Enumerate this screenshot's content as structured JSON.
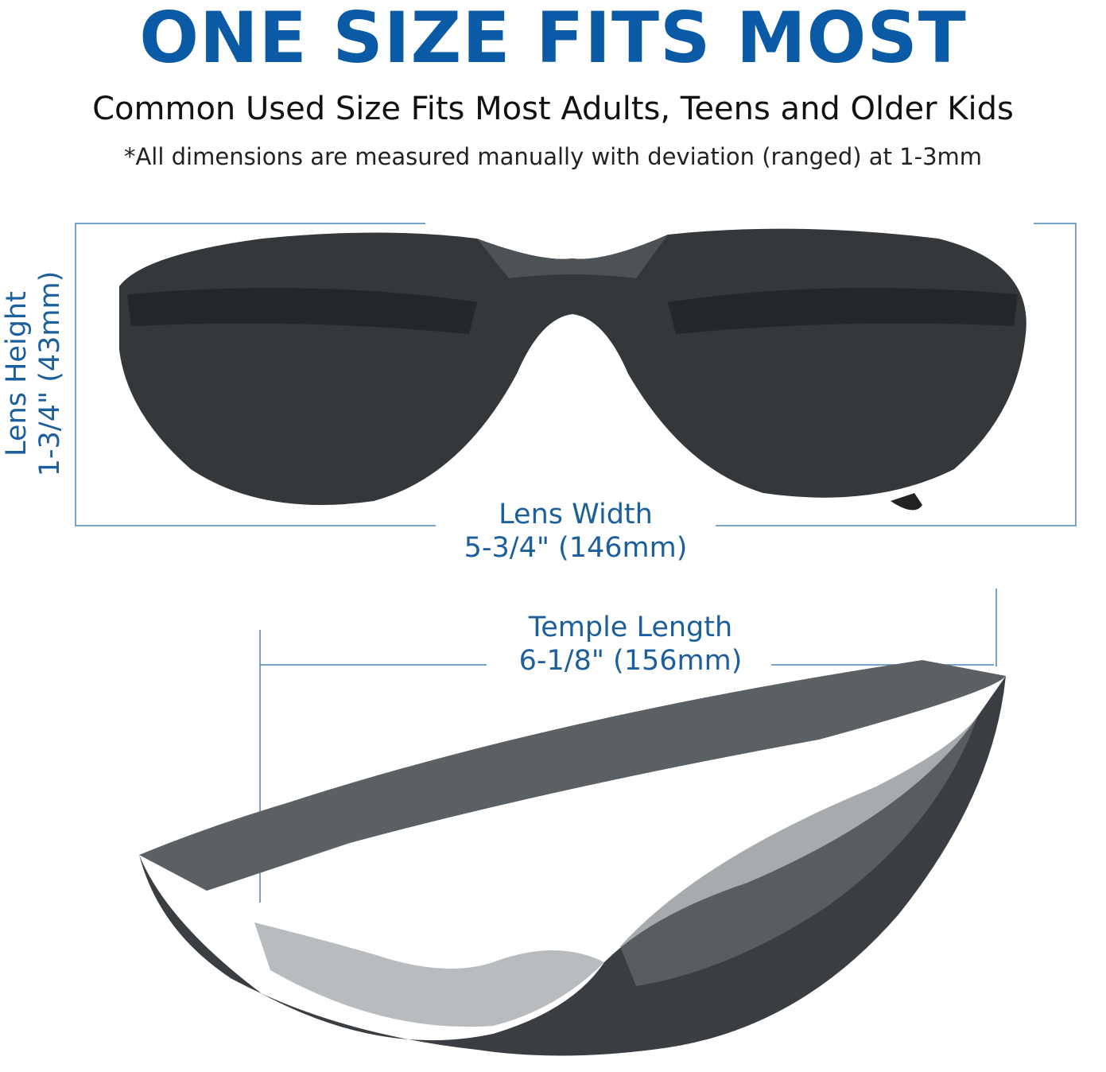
{
  "header": {
    "title": "ONE SIZE FITS MOST",
    "subtitle": "Common Used Size Fits Most Adults, Teens and Older Kids",
    "note": "*All dimensions are measured manually with deviation (ranged) at 1-3mm"
  },
  "dimensions": {
    "lens_height": {
      "label": "Lens Height",
      "value": "1-3/4\" (43mm)"
    },
    "lens_width": {
      "label": "Lens Width",
      "value": "5-3/4\" (146mm)"
    },
    "temple_length": {
      "label": "Temple Length",
      "value": "6-1/8\" (156mm)"
    }
  },
  "colors": {
    "title": "#0b5aa5",
    "dimension": "#1b5f9c",
    "lens": "#2f3336"
  }
}
